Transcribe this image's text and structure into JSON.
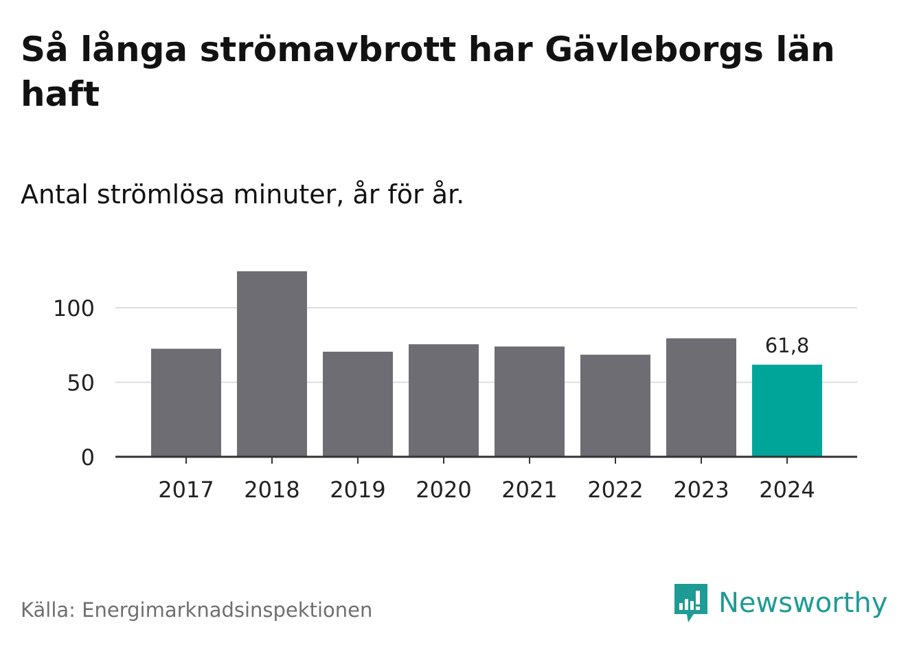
{
  "title": "Så långa strömavbrott har Gävleborgs län haft",
  "subtitle": "Antal strömlösa minuter, år för år.",
  "source": "Källa: Energimarknadsinspektionen",
  "logo_text": "Newsworthy",
  "colors": {
    "bar": "#6e6d73",
    "highlight": "#00a59a",
    "grid": "#dddddd",
    "axis": "#333333",
    "text": "#121212",
    "logo": "#1e9b94"
  },
  "chart_data": {
    "type": "bar",
    "categories": [
      "2017",
      "2018",
      "2019",
      "2020",
      "2021",
      "2022",
      "2023",
      "2024"
    ],
    "values": [
      72.5,
      124.5,
      70.5,
      75.5,
      74,
      68.5,
      79.5,
      61.8
    ],
    "highlight_index": 7,
    "data_labels": [
      null,
      null,
      null,
      null,
      null,
      null,
      null,
      "61,8"
    ],
    "ylim": [
      0,
      125
    ],
    "yticks": [
      0,
      50,
      100
    ],
    "ytick_labels": [
      "0",
      "50",
      "100"
    ],
    "grid": true,
    "xlabel": "",
    "ylabel": ""
  }
}
